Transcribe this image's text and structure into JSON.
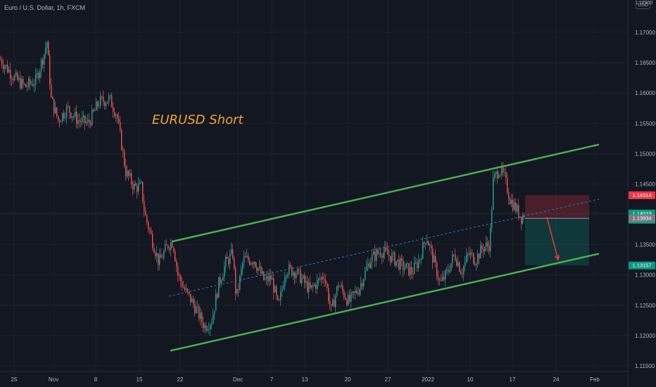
{
  "legend": {
    "symbol_label": "Euro / U.S. Dollar, 1h, FXCM"
  },
  "currency_badge": "USD",
  "price_top_cut": "1.17500",
  "annotation": "EURUSD Short",
  "colors": {
    "background": "#131722",
    "grid": "#1e222d",
    "up": "#26a69a",
    "down": "#ef5350",
    "channel": "#4caf50",
    "midline": "#3d6fc8",
    "annotation": "#f0a431",
    "stop_zone": "#f23645",
    "target_zone": "#089981",
    "arrow": "#f23645"
  },
  "chart_data": {
    "type": "candlestick",
    "symbol": "Euro / U.S. Dollar",
    "interval": "1h",
    "source": "FXCM",
    "ylim": [
      1.1135,
      1.1765
    ],
    "y_ticks": [
      1.115,
      1.12,
      1.125,
      1.13,
      1.135,
      1.14,
      1.145,
      1.15,
      1.155,
      1.16,
      1.165,
      1.17
    ],
    "y_tick_labels": [
      "1.11500",
      "1.12000",
      "1.12500",
      "1.13000",
      "1.13500",
      "1.14000",
      "1.14500",
      "1.15000",
      "1.15500",
      "1.16000",
      "1.16500",
      "1.17000"
    ],
    "x_tick_labels": [
      "25",
      "Nov",
      "8",
      "15",
      "22",
      "Dec",
      "7",
      "13",
      "20",
      "27",
      "2022",
      "10",
      "17",
      "24",
      "Feb"
    ],
    "price_path": [
      [
        0,
        1.1655
      ],
      [
        20,
        1.1625
      ],
      [
        35,
        1.161
      ],
      [
        50,
        1.162
      ],
      [
        62,
        1.1665
      ],
      [
        66,
        1.1685
      ],
      [
        72,
        1.159
      ],
      [
        82,
        1.1555
      ],
      [
        95,
        1.1575
      ],
      [
        110,
        1.1555
      ],
      [
        125,
        1.155
      ],
      [
        140,
        1.1585
      ],
      [
        155,
        1.159
      ],
      [
        165,
        1.1565
      ],
      [
        172,
        1.1515
      ],
      [
        178,
        1.147
      ],
      [
        190,
        1.1445
      ],
      [
        200,
        1.1445
      ],
      [
        205,
        1.14
      ],
      [
        215,
        1.136
      ],
      [
        225,
        1.132
      ],
      [
        238,
        1.135
      ],
      [
        245,
        1.1355
      ],
      [
        252,
        1.13
      ],
      [
        262,
        1.1275
      ],
      [
        275,
        1.125
      ],
      [
        290,
        1.1215
      ],
      [
        300,
        1.1225
      ],
      [
        310,
        1.1285
      ],
      [
        320,
        1.132
      ],
      [
        330,
        1.1335
      ],
      [
        335,
        1.126
      ],
      [
        345,
        1.1325
      ],
      [
        360,
        1.1325
      ],
      [
        375,
        1.129
      ],
      [
        385,
        1.1295
      ],
      [
        395,
        1.1245
      ],
      [
        405,
        1.131
      ],
      [
        420,
        1.1305
      ],
      [
        440,
        1.1275
      ],
      [
        460,
        1.13
      ],
      [
        470,
        1.124
      ],
      [
        480,
        1.1285
      ],
      [
        495,
        1.1255
      ],
      [
        510,
        1.128
      ],
      [
        525,
        1.1325
      ],
      [
        540,
        1.134
      ],
      [
        555,
        1.133
      ],
      [
        570,
        1.1315
      ],
      [
        585,
        1.1305
      ],
      [
        595,
        1.1325
      ],
      [
        605,
        1.1365
      ],
      [
        615,
        1.1325
      ],
      [
        625,
        1.1285
      ],
      [
        635,
        1.1305
      ],
      [
        645,
        1.1335
      ],
      [
        655,
        1.1305
      ],
      [
        665,
        1.1335
      ],
      [
        675,
        1.1325
      ],
      [
        685,
        1.1345
      ],
      [
        695,
        1.135
      ],
      [
        700,
        1.1455
      ],
      [
        708,
        1.1475
      ],
      [
        716,
        1.146
      ],
      [
        724,
        1.1425
      ],
      [
        732,
        1.141
      ],
      [
        740,
        1.1395
      ],
      [
        745,
        1.1402
      ]
    ],
    "channel_upper": [
      [
        244,
        1.1355
      ],
      [
        851,
        1.1515
      ]
    ],
    "channel_lower": [
      [
        242,
        1.1175
      ],
      [
        851,
        1.1335
      ]
    ],
    "channel_mid": [
      [
        240,
        1.1265
      ],
      [
        851,
        1.1425
      ]
    ],
    "short_position": {
      "entry": 1.13934,
      "stop": 1.14314,
      "target": 1.13157,
      "x_start": 746,
      "x_end": 837
    },
    "current_price": 1.14019,
    "price_labels": [
      {
        "value": 1.14314,
        "text": "1.14314",
        "bg": "#f23645"
      },
      {
        "value": 1.14019,
        "text": "1.14019",
        "sub": "35:21",
        "bg": "#089981"
      },
      {
        "value": 1.13934,
        "text": "1.13934",
        "bg": "#787b86"
      },
      {
        "value": 1.13157,
        "text": "1.13157",
        "bg": "#089981"
      }
    ],
    "trend_arrow": {
      "from": [
        777,
        1.1395
      ],
      "to": [
        793,
        1.1325
      ]
    }
  }
}
